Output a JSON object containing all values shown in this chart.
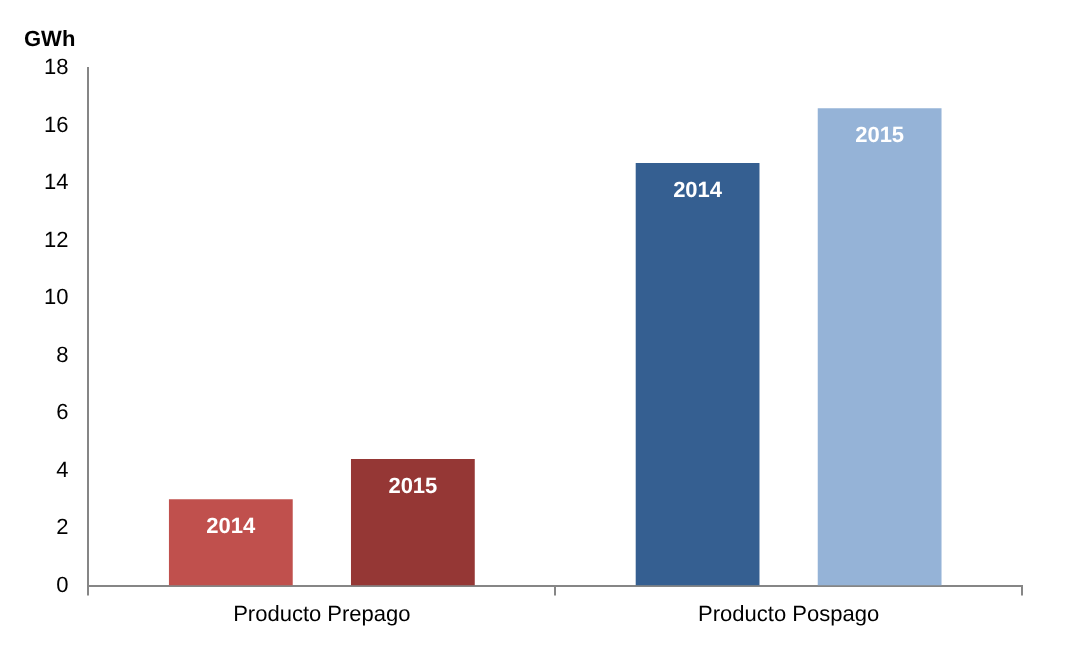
{
  "chart_data": {
    "type": "bar",
    "ylabel": "GWh",
    "categories": [
      "Producto Prepago",
      "Producto Pospago"
    ],
    "series": [
      {
        "name": "2014",
        "colors": [
          "#c0504d",
          "#355f91"
        ],
        "values": [
          3.0,
          14.7
        ]
      },
      {
        "name": "2015",
        "colors": [
          "#953735",
          "#95b3d7"
        ],
        "values": [
          4.4,
          16.6
        ]
      }
    ],
    "ylim": [
      0,
      18
    ],
    "yticks": [
      0,
      2,
      4,
      6,
      8,
      10,
      12,
      14,
      16,
      18
    ],
    "grid": false,
    "legend": false
  }
}
